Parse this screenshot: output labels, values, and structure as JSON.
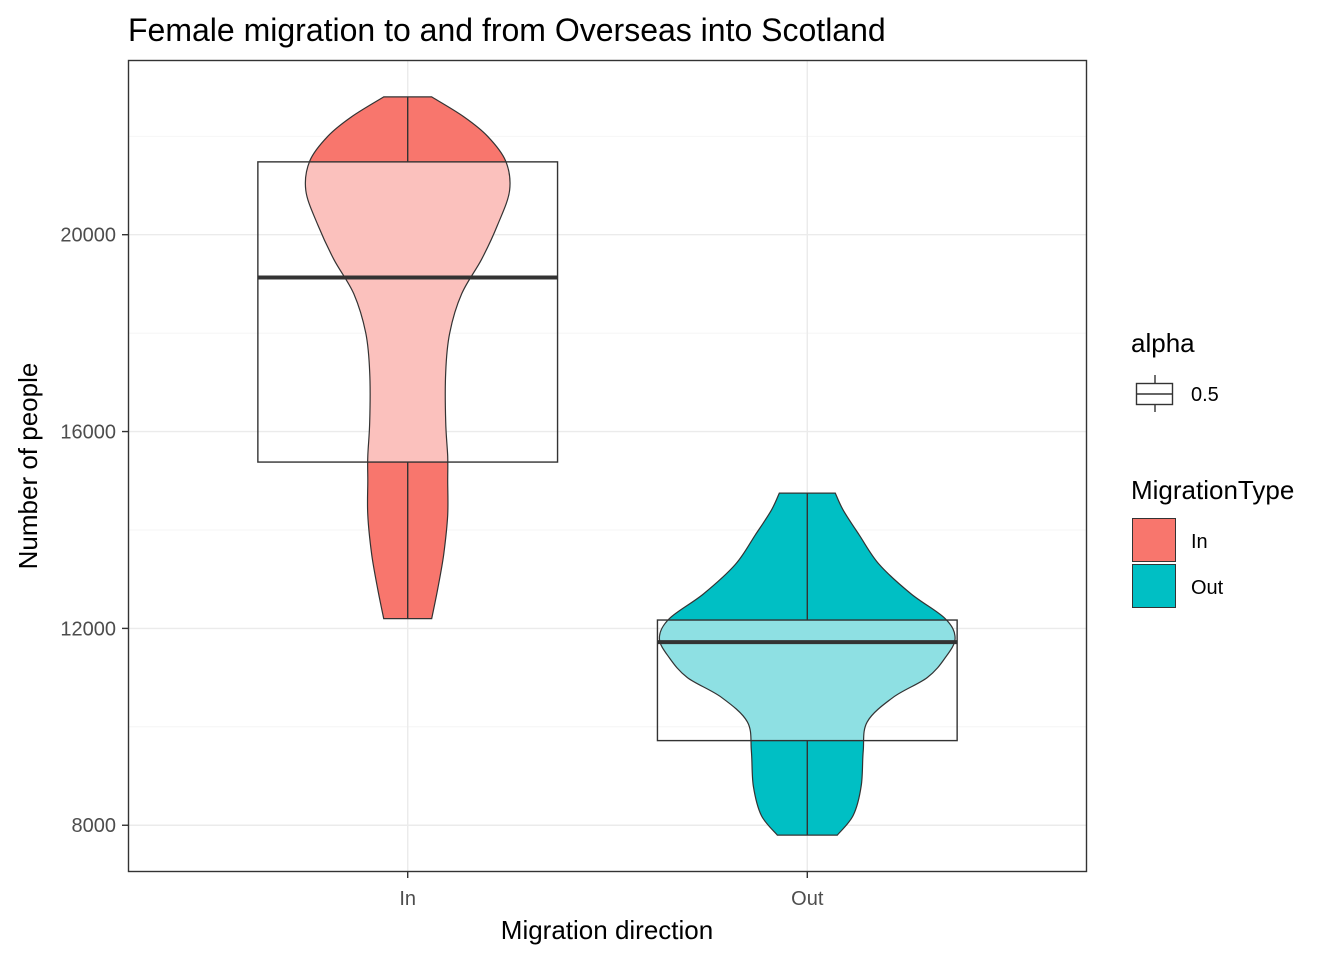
{
  "chart_data": {
    "type": "violin",
    "title": "Female migration to and from Overseas into Scotland",
    "xlabel": "Migration direction",
    "ylabel": "Number of people",
    "categories": [
      "In",
      "Out"
    ],
    "ylim": [
      7050,
      23550
    ],
    "yticks": [
      8000,
      12000,
      16000,
      20000
    ],
    "ytick_labels": [
      "8000",
      "12000",
      "16000",
      "20000"
    ],
    "grid": true,
    "legend_placement": "right",
    "series": [
      {
        "name": "In",
        "color": "#F8766D",
        "light_color": "#FBC1BD",
        "min": 12200,
        "max": 22800,
        "box": {
          "q1": 15380,
          "median": 19130,
          "q3": 21480
        },
        "density_profile": [
          [
            12200,
            0.12
          ],
          [
            12800,
            0.15
          ],
          [
            13500,
            0.18
          ],
          [
            14300,
            0.2
          ],
          [
            15000,
            0.2
          ],
          [
            15500,
            0.2
          ],
          [
            16200,
            0.19
          ],
          [
            17200,
            0.19
          ],
          [
            18000,
            0.21
          ],
          [
            18800,
            0.27
          ],
          [
            19500,
            0.37
          ],
          [
            20200,
            0.45
          ],
          [
            20900,
            0.51
          ],
          [
            21500,
            0.49
          ],
          [
            22000,
            0.4
          ],
          [
            22400,
            0.28
          ],
          [
            22800,
            0.12
          ]
        ]
      },
      {
        "name": "Out",
        "color": "#00BFC4",
        "light_color": "#8EE0E3",
        "min": 7800,
        "max": 14750,
        "box": {
          "q1": 9720,
          "median": 11720,
          "q3": 12170
        },
        "density_profile": [
          [
            7800,
            0.15
          ],
          [
            8200,
            0.23
          ],
          [
            8800,
            0.27
          ],
          [
            9500,
            0.28
          ],
          [
            10100,
            0.3
          ],
          [
            10600,
            0.43
          ],
          [
            11000,
            0.6
          ],
          [
            11400,
            0.69
          ],
          [
            11800,
            0.74
          ],
          [
            12200,
            0.69
          ],
          [
            12700,
            0.52
          ],
          [
            13300,
            0.36
          ],
          [
            13900,
            0.26
          ],
          [
            14400,
            0.18
          ],
          [
            14750,
            0.14
          ]
        ]
      }
    ]
  },
  "legend": {
    "alpha_title": "alpha",
    "alpha_value": "0.5",
    "type_title": "MigrationType",
    "type_items": [
      {
        "label": "In",
        "color": "#F8766D"
      },
      {
        "label": "Out",
        "color": "#00BFC4"
      }
    ]
  }
}
